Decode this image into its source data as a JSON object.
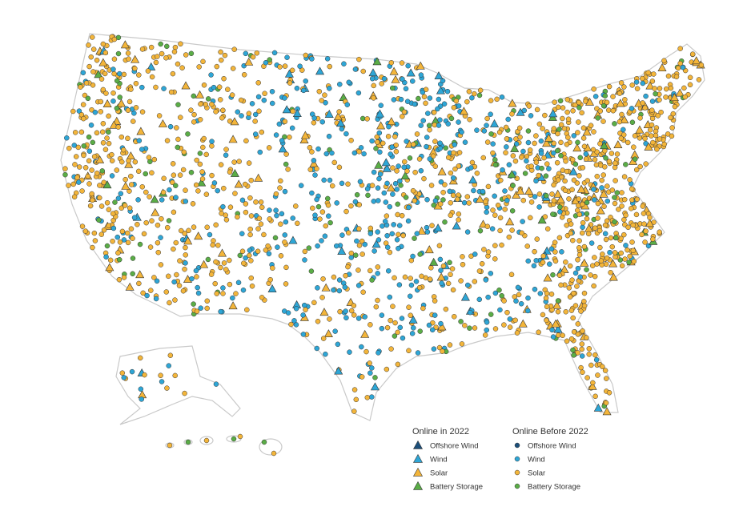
{
  "legend": {
    "groups": [
      {
        "title": "Online in 2022",
        "items": [
          "Offshore Wind",
          "Wind",
          "Solar",
          "Battery Storage"
        ]
      },
      {
        "title": "Online Before 2022",
        "items": [
          "Offshore Wind",
          "Wind",
          "Solar",
          "Battery Storage"
        ]
      }
    ]
  }
}
